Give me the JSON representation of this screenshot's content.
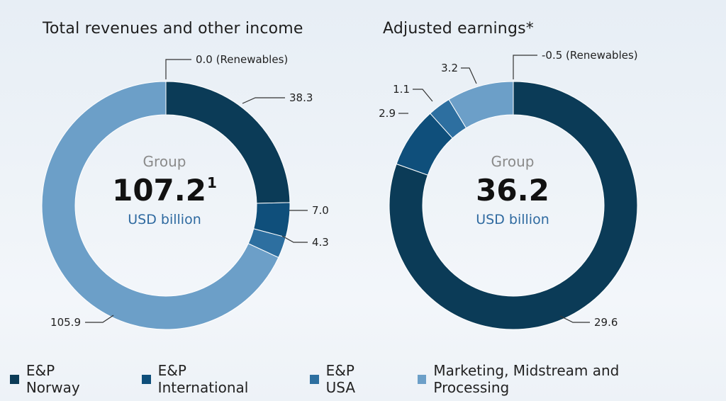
{
  "colors": {
    "ep_norway": "#0b3b57",
    "ep_international": "#0f4f7b",
    "ep_usa": "#2d6fa0",
    "mmp": "#6c9fc8"
  },
  "chart_data": [
    {
      "type": "pie",
      "title": "Total revenues and other income",
      "center": {
        "group": "Group",
        "value": "107.2",
        "footnote": "1",
        "unit": "USD billion"
      },
      "slices": [
        {
          "segment": "E&P Norway",
          "value": 38.3,
          "label": "38.3"
        },
        {
          "segment": "E&P International",
          "value": 7.0,
          "label": "7.0"
        },
        {
          "segment": "E&P USA",
          "value": 4.3,
          "label": "4.3"
        },
        {
          "segment": "Marketing, Midstream and Processing",
          "value": 105.9,
          "label": "105.9"
        }
      ],
      "annotations": [
        {
          "segment": "Renewables",
          "value": 0.0,
          "label": "0.0 (Renewables)"
        }
      ]
    },
    {
      "type": "pie",
      "title": "Adjusted earnings*",
      "center": {
        "group": "Group",
        "value": "36.2",
        "unit": "USD billion"
      },
      "slices": [
        {
          "segment": "E&P Norway",
          "value": 29.6,
          "label": "29.6"
        },
        {
          "segment": "E&P International",
          "value": 2.9,
          "label": "2.9"
        },
        {
          "segment": "E&P USA",
          "value": 1.1,
          "label": "1.1"
        },
        {
          "segment": "Marketing, Midstream and Processing",
          "value": 3.2,
          "label": "3.2"
        }
      ],
      "annotations": [
        {
          "segment": "Renewables",
          "value": -0.5,
          "label": "-0.5 (Renewables)"
        }
      ]
    }
  ],
  "legend": [
    {
      "label": "E&P Norway",
      "color_key": "ep_norway"
    },
    {
      "label": "E&P International",
      "color_key": "ep_international"
    },
    {
      "label": "E&P USA",
      "color_key": "ep_usa"
    },
    {
      "label": "Marketing, Midstream and Processing",
      "color_key": "mmp"
    }
  ]
}
